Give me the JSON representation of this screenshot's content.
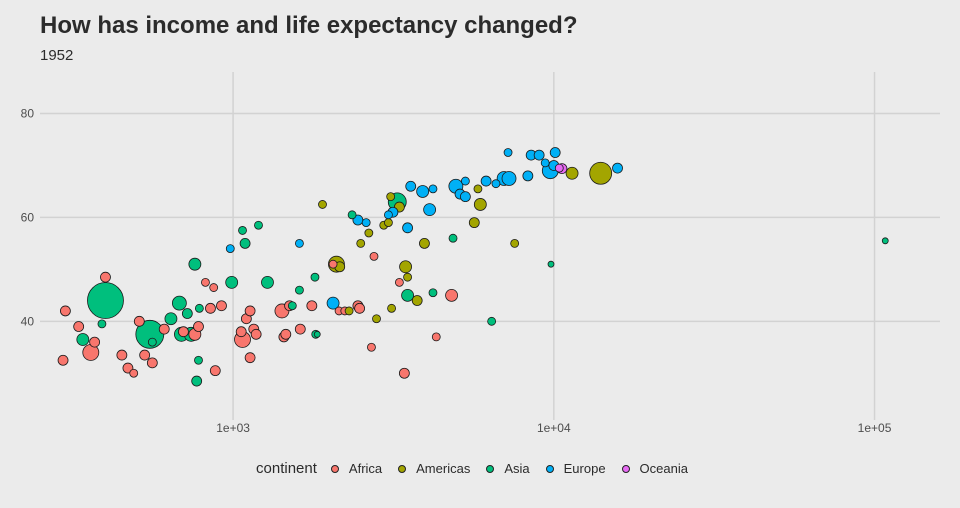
{
  "title": "How has income and life expectancy changed?",
  "subtitle": "1952",
  "legend": {
    "title": "continent",
    "items": [
      {
        "label": "Africa",
        "color": "#f8766d"
      },
      {
        "label": "Americas",
        "color": "#a3a500"
      },
      {
        "label": "Asia",
        "color": "#00bf7d"
      },
      {
        "label": "Europe",
        "color": "#00b0f6"
      },
      {
        "label": "Oceania",
        "color": "#e76bf3"
      }
    ]
  },
  "chart_data": {
    "type": "scatter",
    "title": "How has income and life expectancy changed?",
    "subtitle": "1952",
    "x_scale": "log10",
    "xlim": [
      250,
      160000
    ],
    "ylim": [
      21,
      88
    ],
    "x_ticks": [
      {
        "value": 1000,
        "label": "1e+03"
      },
      {
        "value": 10000,
        "label": "1e+04"
      },
      {
        "value": 100000,
        "label": "1e+05"
      }
    ],
    "y_ticks": [
      {
        "value": 40,
        "label": "40"
      },
      {
        "value": 60,
        "label": "60"
      },
      {
        "value": 80,
        "label": "80"
      }
    ],
    "grid": true,
    "legend_position": "bottom",
    "series": [
      {
        "name": "Africa",
        "color": "#f8766d",
        "points": [
          {
            "x": 300,
            "y": 42,
            "size": 5
          },
          {
            "x": 295,
            "y": 32.5,
            "size": 5
          },
          {
            "x": 330,
            "y": 39,
            "size": 5
          },
          {
            "x": 360,
            "y": 34,
            "size": 8
          },
          {
            "x": 370,
            "y": 36,
            "size": 5
          },
          {
            "x": 400,
            "y": 48.5,
            "size": 5
          },
          {
            "x": 450,
            "y": 33.5,
            "size": 5
          },
          {
            "x": 470,
            "y": 31,
            "size": 5
          },
          {
            "x": 490,
            "y": 30,
            "size": 4
          },
          {
            "x": 510,
            "y": 40,
            "size": 5
          },
          {
            "x": 530,
            "y": 33.5,
            "size": 5
          },
          {
            "x": 560,
            "y": 32,
            "size": 5
          },
          {
            "x": 610,
            "y": 38.5,
            "size": 5
          },
          {
            "x": 700,
            "y": 38,
            "size": 5
          },
          {
            "x": 760,
            "y": 37.5,
            "size": 6
          },
          {
            "x": 780,
            "y": 39,
            "size": 5
          },
          {
            "x": 820,
            "y": 47.5,
            "size": 4
          },
          {
            "x": 850,
            "y": 42.5,
            "size": 5
          },
          {
            "x": 870,
            "y": 46.5,
            "size": 4
          },
          {
            "x": 880,
            "y": 30.5,
            "size": 5
          },
          {
            "x": 920,
            "y": 43,
            "size": 5
          },
          {
            "x": 1060,
            "y": 38,
            "size": 5
          },
          {
            "x": 1070,
            "y": 36.5,
            "size": 8
          },
          {
            "x": 1100,
            "y": 40.5,
            "size": 5
          },
          {
            "x": 1130,
            "y": 42,
            "size": 5
          },
          {
            "x": 1130,
            "y": 33,
            "size": 5
          },
          {
            "x": 1160,
            "y": 38.5,
            "size": 5
          },
          {
            "x": 1180,
            "y": 37.5,
            "size": 5
          },
          {
            "x": 1420,
            "y": 42,
            "size": 7
          },
          {
            "x": 1440,
            "y": 37,
            "size": 5
          },
          {
            "x": 1460,
            "y": 37.5,
            "size": 5
          },
          {
            "x": 1500,
            "y": 43,
            "size": 5
          },
          {
            "x": 1620,
            "y": 38.5,
            "size": 5
          },
          {
            "x": 1760,
            "y": 43,
            "size": 5
          },
          {
            "x": 2050,
            "y": 51,
            "size": 4
          },
          {
            "x": 2140,
            "y": 42,
            "size": 4
          },
          {
            "x": 2230,
            "y": 42,
            "size": 4
          },
          {
            "x": 2450,
            "y": 43,
            "size": 5
          },
          {
            "x": 2480,
            "y": 42.5,
            "size": 5
          },
          {
            "x": 2700,
            "y": 35,
            "size": 4
          },
          {
            "x": 2750,
            "y": 52.5,
            "size": 4
          },
          {
            "x": 3300,
            "y": 47.5,
            "size": 4
          },
          {
            "x": 3420,
            "y": 30,
            "size": 5
          },
          {
            "x": 4300,
            "y": 37,
            "size": 4
          },
          {
            "x": 4800,
            "y": 45,
            "size": 6
          }
        ]
      },
      {
        "name": "Americas",
        "color": "#a3a500",
        "points": [
          {
            "x": 1900,
            "y": 62.5,
            "size": 4
          },
          {
            "x": 2100,
            "y": 51,
            "size": 8
          },
          {
            "x": 2150,
            "y": 50.5,
            "size": 5
          },
          {
            "x": 2300,
            "y": 42,
            "size": 4
          },
          {
            "x": 2500,
            "y": 55,
            "size": 4
          },
          {
            "x": 2650,
            "y": 57,
            "size": 4
          },
          {
            "x": 2800,
            "y": 40.5,
            "size": 4
          },
          {
            "x": 2950,
            "y": 58.5,
            "size": 4
          },
          {
            "x": 3050,
            "y": 59,
            "size": 4
          },
          {
            "x": 3100,
            "y": 64,
            "size": 4
          },
          {
            "x": 3120,
            "y": 42.5,
            "size": 4
          },
          {
            "x": 3300,
            "y": 62,
            "size": 5
          },
          {
            "x": 3450,
            "y": 50.5,
            "size": 6
          },
          {
            "x": 3500,
            "y": 48.5,
            "size": 4
          },
          {
            "x": 3750,
            "y": 44,
            "size": 5
          },
          {
            "x": 3950,
            "y": 55,
            "size": 5
          },
          {
            "x": 5650,
            "y": 59,
            "size": 5
          },
          {
            "x": 5900,
            "y": 62.5,
            "size": 6
          },
          {
            "x": 5800,
            "y": 65.5,
            "size": 4
          },
          {
            "x": 7550,
            "y": 55,
            "size": 4
          },
          {
            "x": 11400,
            "y": 68.5,
            "size": 6
          },
          {
            "x": 14000,
            "y": 68.5,
            "size": 11
          }
        ]
      },
      {
        "name": "Asia",
        "color": "#00bf7d",
        "points": [
          {
            "x": 340,
            "y": 36.5,
            "size": 6
          },
          {
            "x": 390,
            "y": 39.5,
            "size": 4
          },
          {
            "x": 400,
            "y": 44,
            "size": 18
          },
          {
            "x": 550,
            "y": 37.5,
            "size": 14
          },
          {
            "x": 560,
            "y": 36,
            "size": 4
          },
          {
            "x": 640,
            "y": 40.5,
            "size": 6
          },
          {
            "x": 680,
            "y": 43.5,
            "size": 7
          },
          {
            "x": 690,
            "y": 37.5,
            "size": 7
          },
          {
            "x": 720,
            "y": 41.5,
            "size": 5
          },
          {
            "x": 740,
            "y": 37.5,
            "size": 7
          },
          {
            "x": 760,
            "y": 51,
            "size": 6
          },
          {
            "x": 770,
            "y": 28.5,
            "size": 5
          },
          {
            "x": 780,
            "y": 32.5,
            "size": 4
          },
          {
            "x": 785,
            "y": 42.5,
            "size": 4
          },
          {
            "x": 990,
            "y": 47.5,
            "size": 6
          },
          {
            "x": 1070,
            "y": 57.5,
            "size": 4
          },
          {
            "x": 1090,
            "y": 55,
            "size": 5
          },
          {
            "x": 1200,
            "y": 58.5,
            "size": 4
          },
          {
            "x": 1280,
            "y": 47.5,
            "size": 6
          },
          {
            "x": 1530,
            "y": 43,
            "size": 4
          },
          {
            "x": 1610,
            "y": 46,
            "size": 4
          },
          {
            "x": 1800,
            "y": 48.5,
            "size": 4
          },
          {
            "x": 1810,
            "y": 37.5,
            "size": 4
          },
          {
            "x": 1830,
            "y": 37.5,
            "size": 3
          },
          {
            "x": 2350,
            "y": 60.5,
            "size": 4
          },
          {
            "x": 3250,
            "y": 63,
            "size": 9
          },
          {
            "x": 3500,
            "y": 45,
            "size": 6
          },
          {
            "x": 4200,
            "y": 45.5,
            "size": 4
          },
          {
            "x": 4850,
            "y": 56,
            "size": 4
          },
          {
            "x": 6400,
            "y": 40,
            "size": 4
          },
          {
            "x": 9800,
            "y": 51,
            "size": 3
          },
          {
            "x": 108000,
            "y": 55.5,
            "size": 3
          }
        ]
      },
      {
        "name": "Europe",
        "color": "#00b0f6",
        "points": [
          {
            "x": 980,
            "y": 54,
            "size": 4
          },
          {
            "x": 1610,
            "y": 55,
            "size": 4
          },
          {
            "x": 2450,
            "y": 59.5,
            "size": 5
          },
          {
            "x": 2600,
            "y": 59,
            "size": 4
          },
          {
            "x": 2050,
            "y": 43.5,
            "size": 6
          },
          {
            "x": 3050,
            "y": 60.5,
            "size": 4
          },
          {
            "x": 3150,
            "y": 61,
            "size": 5
          },
          {
            "x": 3580,
            "y": 66,
            "size": 5
          },
          {
            "x": 3500,
            "y": 58,
            "size": 5
          },
          {
            "x": 3900,
            "y": 65,
            "size": 6
          },
          {
            "x": 4100,
            "y": 61.5,
            "size": 6
          },
          {
            "x": 4200,
            "y": 65.5,
            "size": 4
          },
          {
            "x": 4950,
            "y": 66,
            "size": 7
          },
          {
            "x": 5100,
            "y": 64.5,
            "size": 5
          },
          {
            "x": 5300,
            "y": 64,
            "size": 5
          },
          {
            "x": 5300,
            "y": 67,
            "size": 4
          },
          {
            "x": 6150,
            "y": 67,
            "size": 5
          },
          {
            "x": 6600,
            "y": 66.5,
            "size": 4
          },
          {
            "x": 7000,
            "y": 67.5,
            "size": 7
          },
          {
            "x": 7200,
            "y": 72.5,
            "size": 4
          },
          {
            "x": 7250,
            "y": 67.5,
            "size": 7
          },
          {
            "x": 8300,
            "y": 68,
            "size": 5
          },
          {
            "x": 8500,
            "y": 72,
            "size": 5
          },
          {
            "x": 9000,
            "y": 72,
            "size": 5
          },
          {
            "x": 9400,
            "y": 70.5,
            "size": 4
          },
          {
            "x": 9750,
            "y": 69,
            "size": 8
          },
          {
            "x": 10100,
            "y": 72.5,
            "size": 5
          },
          {
            "x": 10000,
            "y": 70,
            "size": 5
          },
          {
            "x": 15800,
            "y": 69.5,
            "size": 5
          }
        ]
      },
      {
        "name": "Oceania",
        "color": "#e76bf3",
        "points": [
          {
            "x": 10400,
            "y": 69.5,
            "size": 4
          },
          {
            "x": 10600,
            "y": 69.4,
            "size": 5
          }
        ]
      }
    ]
  }
}
